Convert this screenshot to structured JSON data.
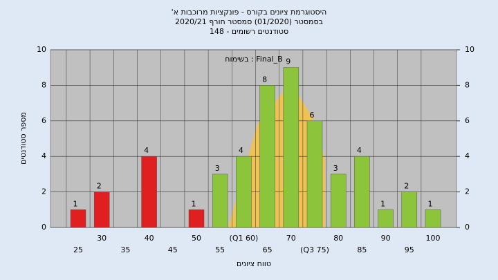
{
  "chart_data": {
    "type": "bar",
    "title": [
      "היסטוגרמת ציונים בקורס - פונקציות מרוכבות א'",
      "בסמסטר (01/2020)  סמסטר חורף 2020/21",
      "סטודנטים רשומים - 148"
    ],
    "annotation": "בשימוח : Final_B",
    "xlabel": "טווח ציונים",
    "ylabel": "מספר סטודנטים",
    "categories": [
      25,
      30,
      35,
      40,
      45,
      50,
      55,
      "(Q1 60)",
      65,
      70,
      "(Q3 75)",
      80,
      85,
      90,
      95,
      100
    ],
    "values": [
      1,
      2,
      0,
      4,
      0,
      1,
      3,
      4,
      8,
      9,
      6,
      3,
      4,
      1,
      2,
      1
    ],
    "colors": [
      "#e02020",
      "#e02020",
      "#e02020",
      "#e02020",
      "#e02020",
      "#e02020",
      "#8cc43c",
      "#8cc43c",
      "#8cc43c",
      "#8cc43c",
      "#8cc43c",
      "#8cc43c",
      "#8cc43c",
      "#8cc43c",
      "#8cc43c",
      "#8cc43c"
    ],
    "ylim": [
      0,
      10
    ],
    "yticks": [
      0,
      2,
      4,
      6,
      8,
      10
    ],
    "y2lim": [
      0,
      10
    ],
    "y2ticks": [
      0,
      2,
      4,
      6,
      8,
      10
    ],
    "grid": true
  }
}
